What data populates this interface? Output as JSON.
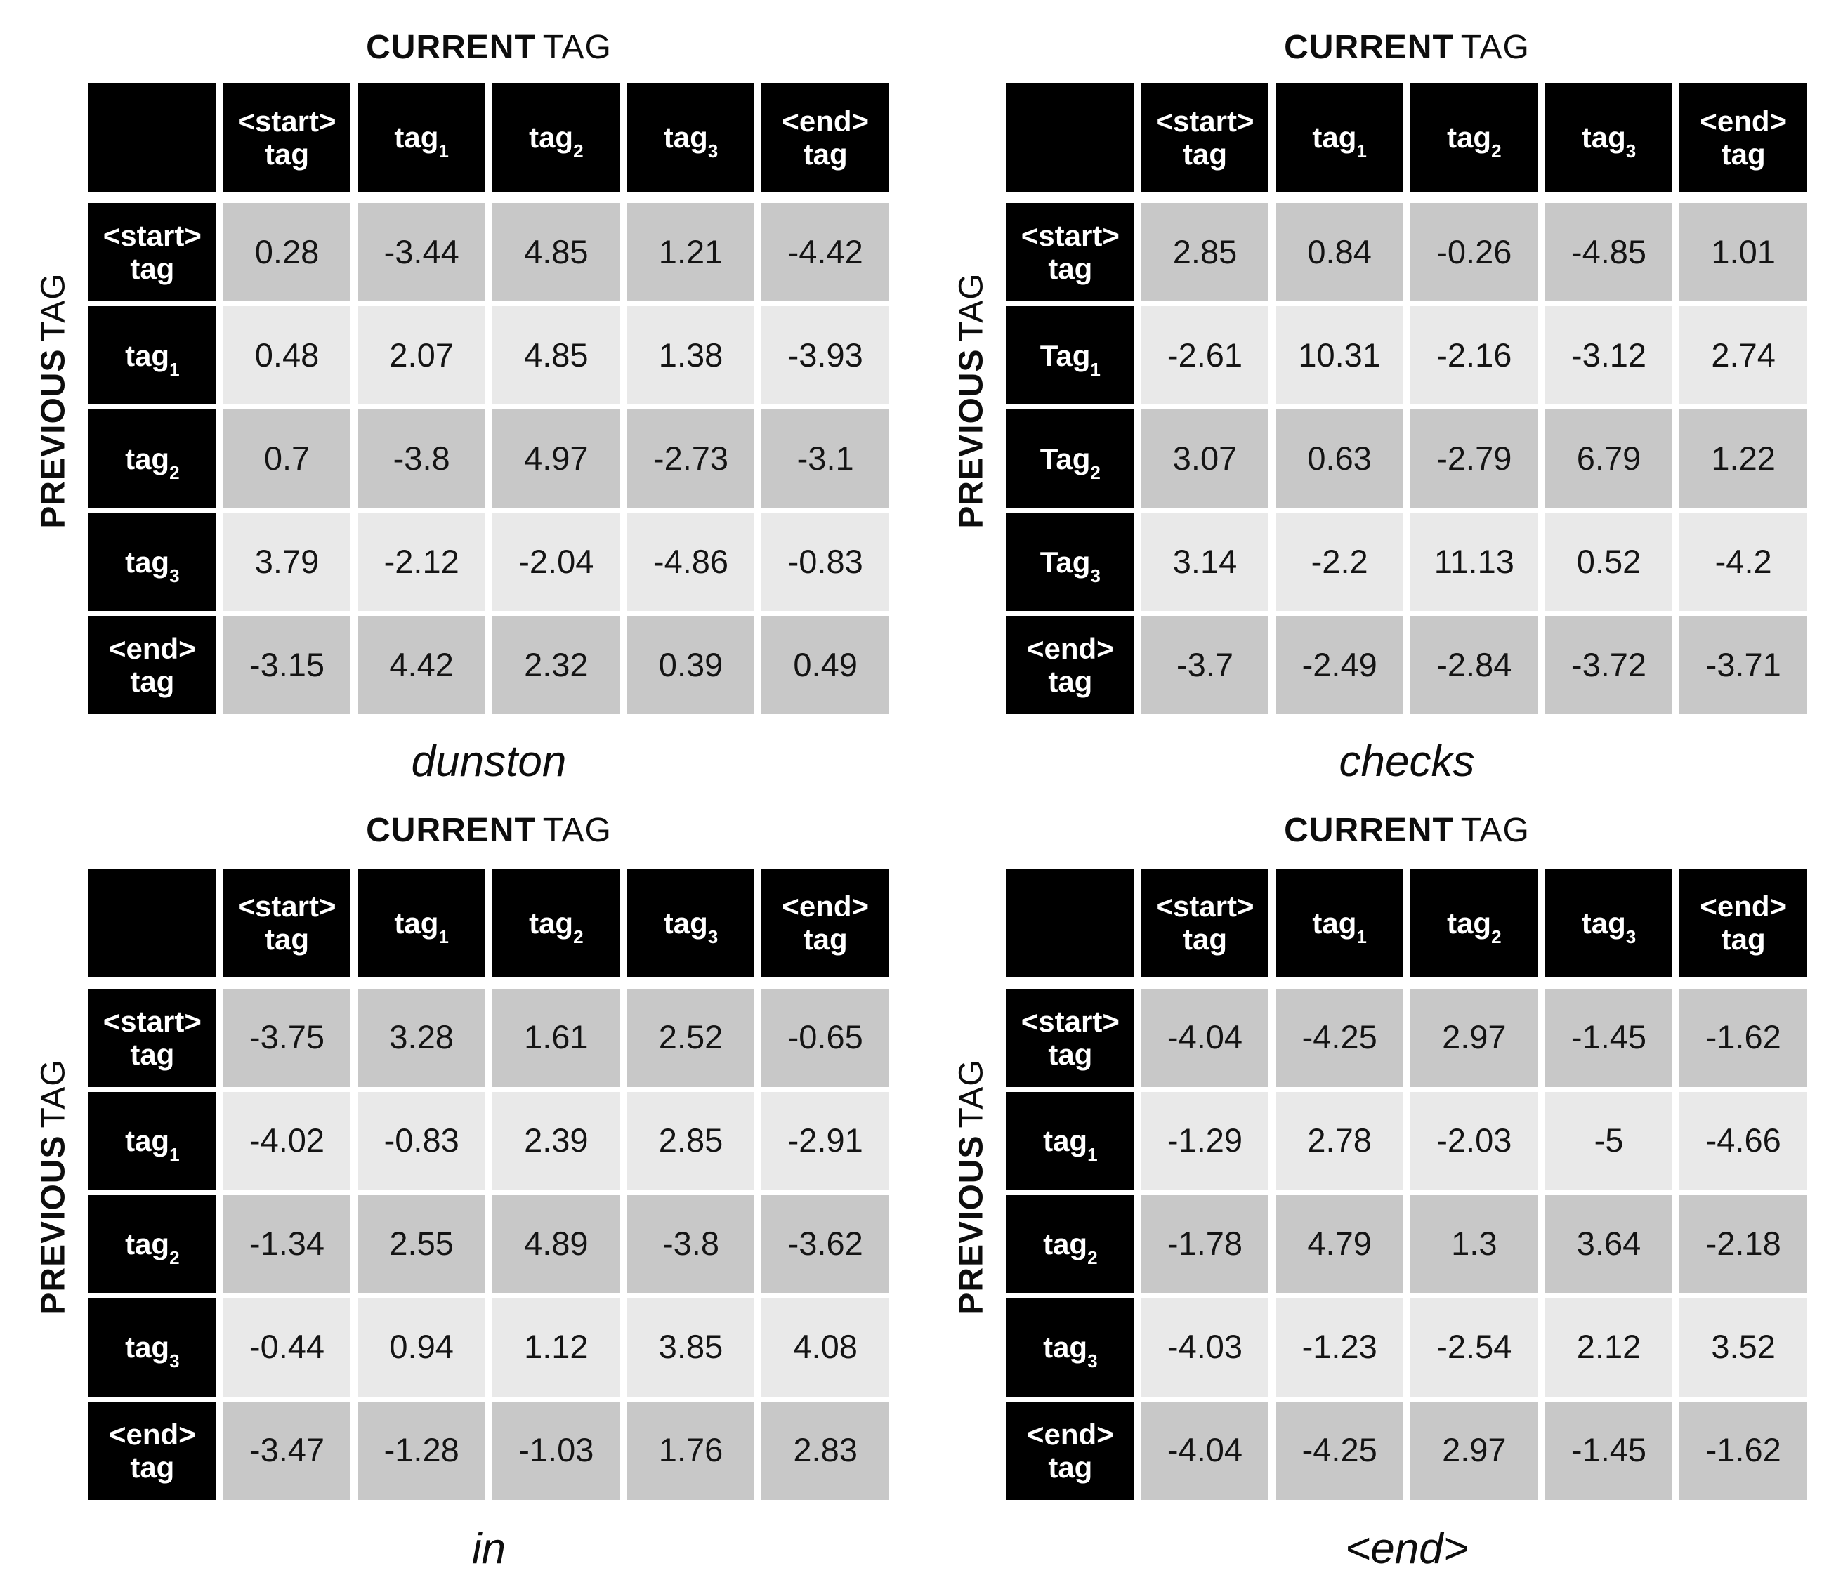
{
  "axis_titles": {
    "top_strong": "CURRENT",
    "top_rest": "TAG",
    "left_strong": "PREVIOUS",
    "left_rest": "TAG"
  },
  "colors": {
    "header_bg": "#000000",
    "header_text": "#ffffff",
    "row_dark": "#c8c8c8",
    "row_light": "#e9e9e9",
    "page_bg": "#ffffff",
    "text": "#111111"
  },
  "tables": [
    {
      "caption": "dunston",
      "col_headers": [
        {
          "label": "<start>",
          "label2": "tag"
        },
        {
          "label": "tag",
          "sub": "1"
        },
        {
          "label": "tag",
          "sub": "2"
        },
        {
          "label": "tag",
          "sub": "3"
        },
        {
          "label": "<end>",
          "label2": "tag"
        }
      ],
      "rows": [
        {
          "header": {
            "label": "<start>",
            "label2": "tag"
          }
        },
        {
          "header": {
            "label": "tag",
            "sub": "1"
          }
        },
        {
          "header": {
            "label": "tag",
            "sub": "2"
          }
        },
        {
          "header": {
            "label": "tag",
            "sub": "3"
          }
        },
        {
          "header": {
            "label": "<end>",
            "label2": "tag"
          }
        }
      ]
    },
    {
      "caption": "checks",
      "col_headers": [
        {
          "label": "<start>",
          "label2": "tag"
        },
        {
          "label": "tag",
          "sub": "1"
        },
        {
          "label": "tag",
          "sub": "2"
        },
        {
          "label": "tag",
          "sub": "3"
        },
        {
          "label": "<end>",
          "label2": "tag"
        }
      ],
      "rows": [
        {
          "header": {
            "label": "<start>",
            "label2": "tag"
          }
        },
        {
          "header": {
            "label": "Tag",
            "sub": "1"
          }
        },
        {
          "header": {
            "label": "Tag",
            "sub": "2"
          }
        },
        {
          "header": {
            "label": "Tag",
            "sub": "3"
          }
        },
        {
          "header": {
            "label": "<end>",
            "label2": "tag"
          }
        }
      ]
    },
    {
      "caption": "in",
      "col_headers": [
        {
          "label": "<start>",
          "label2": "tag"
        },
        {
          "label": "tag",
          "sub": "1"
        },
        {
          "label": "tag",
          "sub": "2"
        },
        {
          "label": "tag",
          "sub": "3"
        },
        {
          "label": "<end>",
          "label2": "tag"
        }
      ],
      "rows": [
        {
          "header": {
            "label": "<start>",
            "label2": "tag"
          }
        },
        {
          "header": {
            "label": "tag",
            "sub": "1"
          }
        },
        {
          "header": {
            "label": "tag",
            "sub": "2"
          }
        },
        {
          "header": {
            "label": "tag",
            "sub": "3"
          }
        },
        {
          "header": {
            "label": "<end>",
            "label2": "tag"
          }
        }
      ]
    },
    {
      "caption": "<end>",
      "col_headers": [
        {
          "label": "<start>",
          "label2": "tag"
        },
        {
          "label": "tag",
          "sub": "1"
        },
        {
          "label": "tag",
          "sub": "2"
        },
        {
          "label": "tag",
          "sub": "3"
        },
        {
          "label": "<end>",
          "label2": "tag"
        }
      ],
      "rows": [
        {
          "header": {
            "label": "<start>",
            "label2": "tag"
          }
        },
        {
          "header": {
            "label": "tag",
            "sub": "1"
          }
        },
        {
          "header": {
            "label": "tag",
            "sub": "2"
          }
        },
        {
          "header": {
            "label": "tag",
            "sub": "3"
          }
        },
        {
          "header": {
            "label": "<end>",
            "label2": "tag"
          }
        }
      ]
    }
  ],
  "chart_data": [
    {
      "type": "table",
      "title": "dunston",
      "x_axis_label": "CURRENT TAG",
      "y_axis_label": "PREVIOUS TAG",
      "columns": [
        "<start> tag",
        "tag1",
        "tag2",
        "tag3",
        "<end> tag"
      ],
      "rows": [
        "<start> tag",
        "tag1",
        "tag2",
        "tag3",
        "<end> tag"
      ],
      "values": [
        [
          0.28,
          -3.44,
          4.85,
          1.21,
          -4.42
        ],
        [
          0.48,
          2.07,
          4.85,
          1.38,
          -3.93
        ],
        [
          0.7,
          -3.8,
          4.97,
          -2.73,
          -3.1
        ],
        [
          3.79,
          -2.12,
          -2.04,
          -4.86,
          -0.83
        ],
        [
          -3.15,
          4.42,
          2.32,
          0.39,
          0.49
        ]
      ]
    },
    {
      "type": "table",
      "title": "checks",
      "x_axis_label": "CURRENT TAG",
      "y_axis_label": "PREVIOUS TAG",
      "columns": [
        "<start> tag",
        "tag1",
        "tag2",
        "tag3",
        "<end> tag"
      ],
      "rows": [
        "<start> tag",
        "Tag1",
        "Tag2",
        "Tag3",
        "<end> tag"
      ],
      "values": [
        [
          2.85,
          0.84,
          -0.26,
          -4.85,
          1.01
        ],
        [
          -2.61,
          10.31,
          -2.16,
          -3.12,
          2.74
        ],
        [
          3.07,
          0.63,
          -2.79,
          6.79,
          1.22
        ],
        [
          3.14,
          -2.2,
          11.13,
          0.52,
          -4.2
        ],
        [
          -3.7,
          -2.49,
          -2.84,
          -3.72,
          -3.71
        ]
      ]
    },
    {
      "type": "table",
      "title": "in",
      "x_axis_label": "CURRENT TAG",
      "y_axis_label": "PREVIOUS TAG",
      "columns": [
        "<start> tag",
        "tag1",
        "tag2",
        "tag3",
        "<end> tag"
      ],
      "rows": [
        "<start> tag",
        "tag1",
        "tag2",
        "tag3",
        "<end> tag"
      ],
      "values": [
        [
          -3.75,
          3.28,
          1.61,
          2.52,
          -0.65
        ],
        [
          -4.02,
          -0.83,
          2.39,
          2.85,
          -2.91
        ],
        [
          -1.34,
          2.55,
          4.89,
          -3.8,
          -3.62
        ],
        [
          -0.44,
          0.94,
          1.12,
          3.85,
          4.08
        ],
        [
          -3.47,
          -1.28,
          -1.03,
          1.76,
          2.83
        ]
      ]
    },
    {
      "type": "table",
      "title": "<end>",
      "x_axis_label": "CURRENT TAG",
      "y_axis_label": "PREVIOUS TAG",
      "columns": [
        "<start> tag",
        "tag1",
        "tag2",
        "tag3",
        "<end> tag"
      ],
      "rows": [
        "<start> tag",
        "tag1",
        "tag2",
        "tag3",
        "<end> tag"
      ],
      "values": [
        [
          -4.04,
          -4.25,
          2.97,
          -1.45,
          -1.62
        ],
        [
          -1.29,
          2.78,
          -2.03,
          -5,
          -4.66
        ],
        [
          -1.78,
          4.79,
          1.3,
          3.64,
          -2.18
        ],
        [
          -4.03,
          -1.23,
          -2.54,
          2.12,
          3.52
        ],
        [
          -4.04,
          -4.25,
          2.97,
          -1.45,
          -1.62
        ]
      ]
    }
  ]
}
